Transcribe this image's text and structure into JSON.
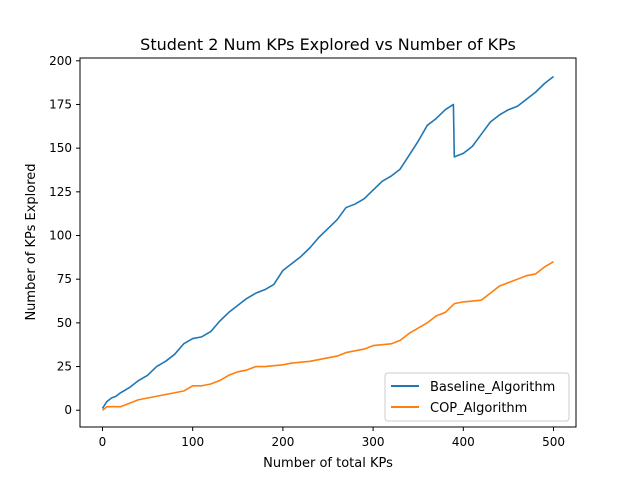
{
  "chart_data": {
    "type": "line",
    "title": "Student 2 Num KPs Explored vs Number of KPs",
    "xlabel": "Number of total KPs",
    "ylabel": "Number of KPs Explored",
    "xlim": [
      -24.9,
      524.9
    ],
    "ylim": [
      -9.6,
      201.6
    ],
    "xticks": [
      0,
      100,
      200,
      300,
      400,
      500
    ],
    "yticks": [
      0,
      25,
      50,
      75,
      100,
      125,
      150,
      175,
      200
    ],
    "grid": false,
    "legend_position": "lower-right",
    "series": [
      {
        "name": "Baseline_Algorithm",
        "color": "#1f77b4",
        "points": [
          [
            0,
            1
          ],
          [
            5,
            5
          ],
          [
            10,
            7
          ],
          [
            15,
            8
          ],
          [
            20,
            10
          ],
          [
            30,
            13
          ],
          [
            40,
            17
          ],
          [
            50,
            20
          ],
          [
            60,
            25
          ],
          [
            70,
            28
          ],
          [
            80,
            32
          ],
          [
            90,
            38
          ],
          [
            100,
            41
          ],
          [
            110,
            42
          ],
          [
            120,
            45
          ],
          [
            130,
            51
          ],
          [
            140,
            56
          ],
          [
            150,
            60
          ],
          [
            160,
            64
          ],
          [
            170,
            67
          ],
          [
            180,
            69
          ],
          [
            190,
            72
          ],
          [
            200,
            80
          ],
          [
            210,
            84
          ],
          [
            220,
            88
          ],
          [
            230,
            93
          ],
          [
            240,
            99
          ],
          [
            250,
            104
          ],
          [
            260,
            109
          ],
          [
            270,
            116
          ],
          [
            280,
            118
          ],
          [
            290,
            121
          ],
          [
            300,
            126
          ],
          [
            310,
            131
          ],
          [
            320,
            134
          ],
          [
            330,
            138
          ],
          [
            340,
            146
          ],
          [
            350,
            154
          ],
          [
            360,
            163
          ],
          [
            370,
            167
          ],
          [
            380,
            172
          ],
          [
            389,
            175
          ],
          [
            390,
            145
          ],
          [
            395,
            146
          ],
          [
            400,
            147
          ],
          [
            410,
            151
          ],
          [
            420,
            158
          ],
          [
            430,
            165
          ],
          [
            440,
            169
          ],
          [
            450,
            172
          ],
          [
            460,
            174
          ],
          [
            470,
            178
          ],
          [
            480,
            182
          ],
          [
            490,
            187
          ],
          [
            500,
            191
          ]
        ]
      },
      {
        "name": "COP_Algorithm",
        "color": "#ff7f0e",
        "points": [
          [
            0,
            0
          ],
          [
            5,
            2
          ],
          [
            10,
            2
          ],
          [
            20,
            2
          ],
          [
            25,
            3
          ],
          [
            30,
            4
          ],
          [
            40,
            6
          ],
          [
            50,
            7
          ],
          [
            60,
            8
          ],
          [
            70,
            9
          ],
          [
            80,
            10
          ],
          [
            90,
            11
          ],
          [
            100,
            14
          ],
          [
            110,
            14
          ],
          [
            120,
            15
          ],
          [
            130,
            17
          ],
          [
            140,
            20
          ],
          [
            150,
            22
          ],
          [
            160,
            23
          ],
          [
            170,
            25
          ],
          [
            180,
            25
          ],
          [
            200,
            26
          ],
          [
            210,
            27
          ],
          [
            230,
            28
          ],
          [
            240,
            29
          ],
          [
            250,
            30
          ],
          [
            260,
            31
          ],
          [
            270,
            33
          ],
          [
            280,
            34
          ],
          [
            290,
            35
          ],
          [
            300,
            37
          ],
          [
            320,
            38
          ],
          [
            330,
            40
          ],
          [
            340,
            44
          ],
          [
            350,
            47
          ],
          [
            360,
            50
          ],
          [
            370,
            54
          ],
          [
            380,
            56
          ],
          [
            390,
            61
          ],
          [
            400,
            62
          ],
          [
            420,
            63
          ],
          [
            430,
            67
          ],
          [
            440,
            71
          ],
          [
            450,
            73
          ],
          [
            460,
            75
          ],
          [
            470,
            77
          ],
          [
            480,
            78
          ],
          [
            490,
            82
          ],
          [
            500,
            85
          ]
        ]
      }
    ]
  }
}
